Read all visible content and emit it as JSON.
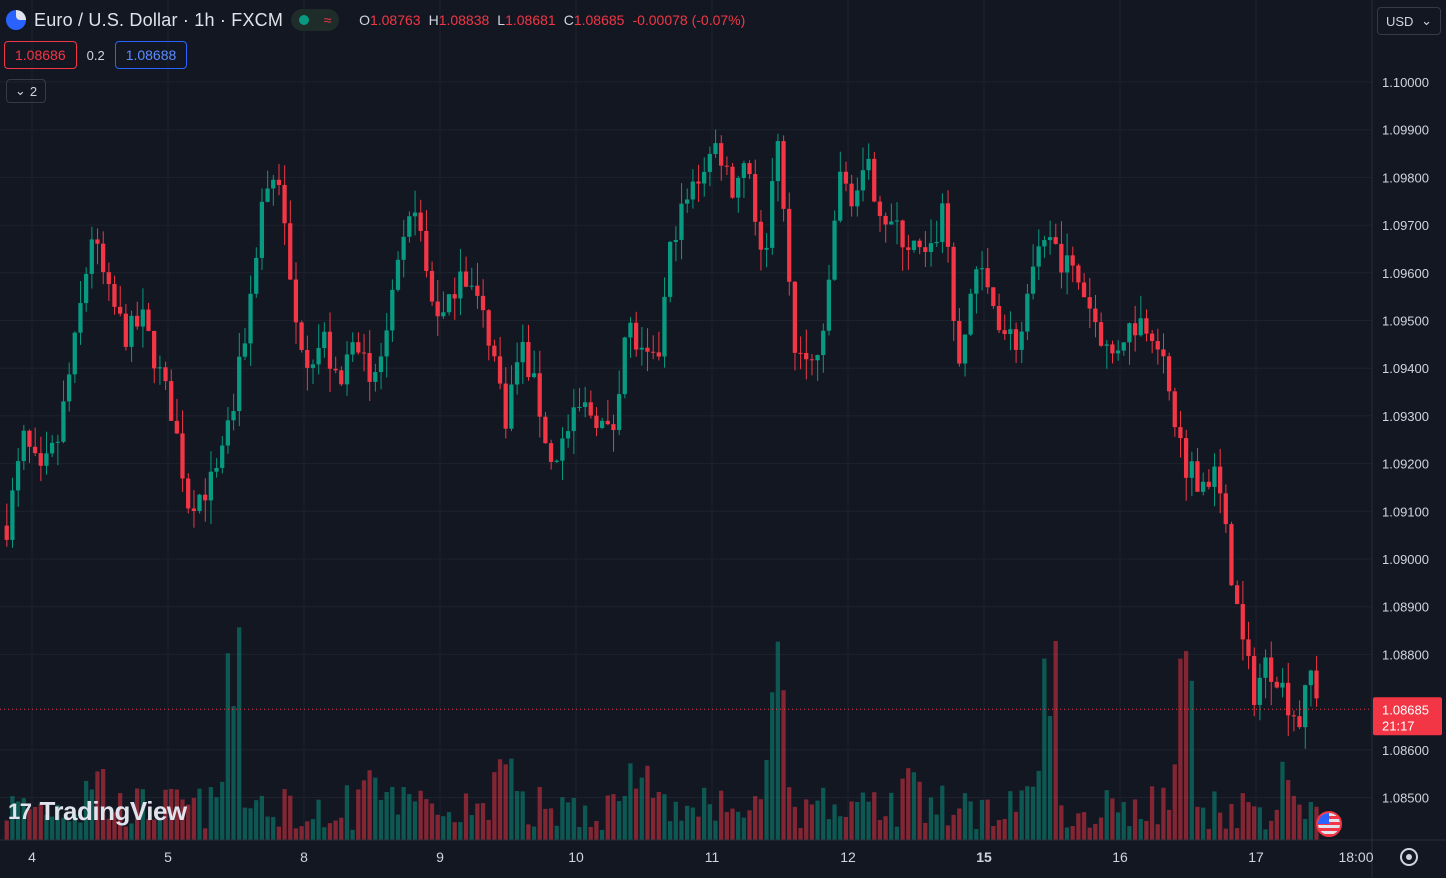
{
  "header": {
    "symbol_title": "Euro / U.S. Dollar · 1h · FXCM",
    "ohlc": {
      "o_label": "O",
      "o": "1.08763",
      "h_label": "H",
      "h": "1.08838",
      "l_label": "L",
      "l": "1.08681",
      "c_label": "C",
      "c": "1.08685",
      "change": "-0.00078 (-0.07%)"
    },
    "market_status_icon": "dot-icon",
    "wave_icon": "≈"
  },
  "trade": {
    "sell_price": "1.08686",
    "spread": "0.2",
    "buy_price": "1.08688"
  },
  "indicators": {
    "collapse_label": "2"
  },
  "currency_button": {
    "label": "USD"
  },
  "last_price_tag": {
    "price": "1.08685",
    "countdown": "21:17",
    "color": "#f23645"
  },
  "branding": {
    "logo_text": "TradingView",
    "logo_mark": "17"
  },
  "colors": {
    "up": "#089981",
    "down": "#f23645",
    "background": "#131722",
    "grid": "#1e222d"
  },
  "chart_data": {
    "type": "candlestick",
    "y_axis": {
      "range": [
        1.0843,
        1.1015
      ],
      "ticks": [
        "1.10000",
        "1.09900",
        "1.09800",
        "1.09700",
        "1.09600",
        "1.09500",
        "1.09400",
        "1.09300",
        "1.09200",
        "1.09100",
        "1.09000",
        "1.08900",
        "1.08800",
        "1.08600",
        "1.08500"
      ]
    },
    "x_axis": {
      "ticks": [
        "4",
        "5",
        "8",
        "9",
        "10",
        "11",
        "12",
        "15",
        "16",
        "17",
        "18:00"
      ]
    },
    "grid": true,
    "series": [
      {
        "day": "4",
        "bars": 24,
        "waypoints": [
          1.0907,
          1.0925,
          1.0917,
          1.0925,
          1.0945,
          1.0968,
          1.0955,
          1.0947,
          1.095
        ]
      },
      {
        "day": "5",
        "bars": 24,
        "waypoints": [
          1.095,
          1.094,
          1.093,
          1.0912,
          1.0914,
          1.0918,
          1.0932,
          1.0952,
          1.0978,
          1.098
        ]
      },
      {
        "day": "8",
        "bars": 24,
        "waypoints": [
          1.098,
          1.095,
          1.0942,
          1.0946,
          1.0934,
          1.095,
          1.0935,
          1.0945,
          1.0962,
          1.0975
        ]
      },
      {
        "day": "9",
        "bars": 24,
        "waypoints": [
          1.0975,
          1.0955,
          1.095,
          1.0962,
          1.0955,
          1.0946,
          1.093,
          1.0945,
          1.0935,
          1.092
        ]
      },
      {
        "day": "10",
        "bars": 24,
        "waypoints": [
          1.092,
          1.0926,
          1.0932,
          1.093,
          1.0925,
          1.095,
          1.0942,
          1.094,
          1.0968,
          1.0975
        ]
      },
      {
        "day": "11",
        "bars": 24,
        "waypoints": [
          1.0975,
          1.0982,
          1.0987,
          1.0978,
          1.0985,
          1.096,
          1.099,
          1.0945,
          1.094,
          1.0945
        ]
      },
      {
        "day": "12",
        "bars": 24,
        "waypoints": [
          1.0945,
          1.098,
          1.0976,
          1.0981,
          1.0972,
          1.0968,
          1.0965,
          1.0962,
          1.0975,
          1.0938
        ]
      },
      {
        "day": "15",
        "bars": 24,
        "waypoints": [
          1.0938,
          1.0962,
          1.0955,
          1.0948,
          1.0945,
          1.0962,
          1.0966,
          1.0962,
          1.0958,
          1.095
        ]
      },
      {
        "day": "16",
        "bars": 24,
        "waypoints": [
          1.095,
          1.0942,
          1.0948,
          1.095,
          1.0948,
          1.0932,
          1.092,
          1.0916,
          1.0918,
          1.0897
        ]
      },
      {
        "day": "17",
        "bars": 16,
        "waypoints": [
          1.0897,
          1.0882,
          1.0872,
          1.0878,
          1.0876,
          1.087,
          1.0866,
          1.0876,
          1.08685
        ]
      }
    ],
    "last_price": 1.08685,
    "volume": {
      "shown": true,
      "peaks": [
        "5",
        "11",
        "15",
        "16"
      ]
    }
  }
}
